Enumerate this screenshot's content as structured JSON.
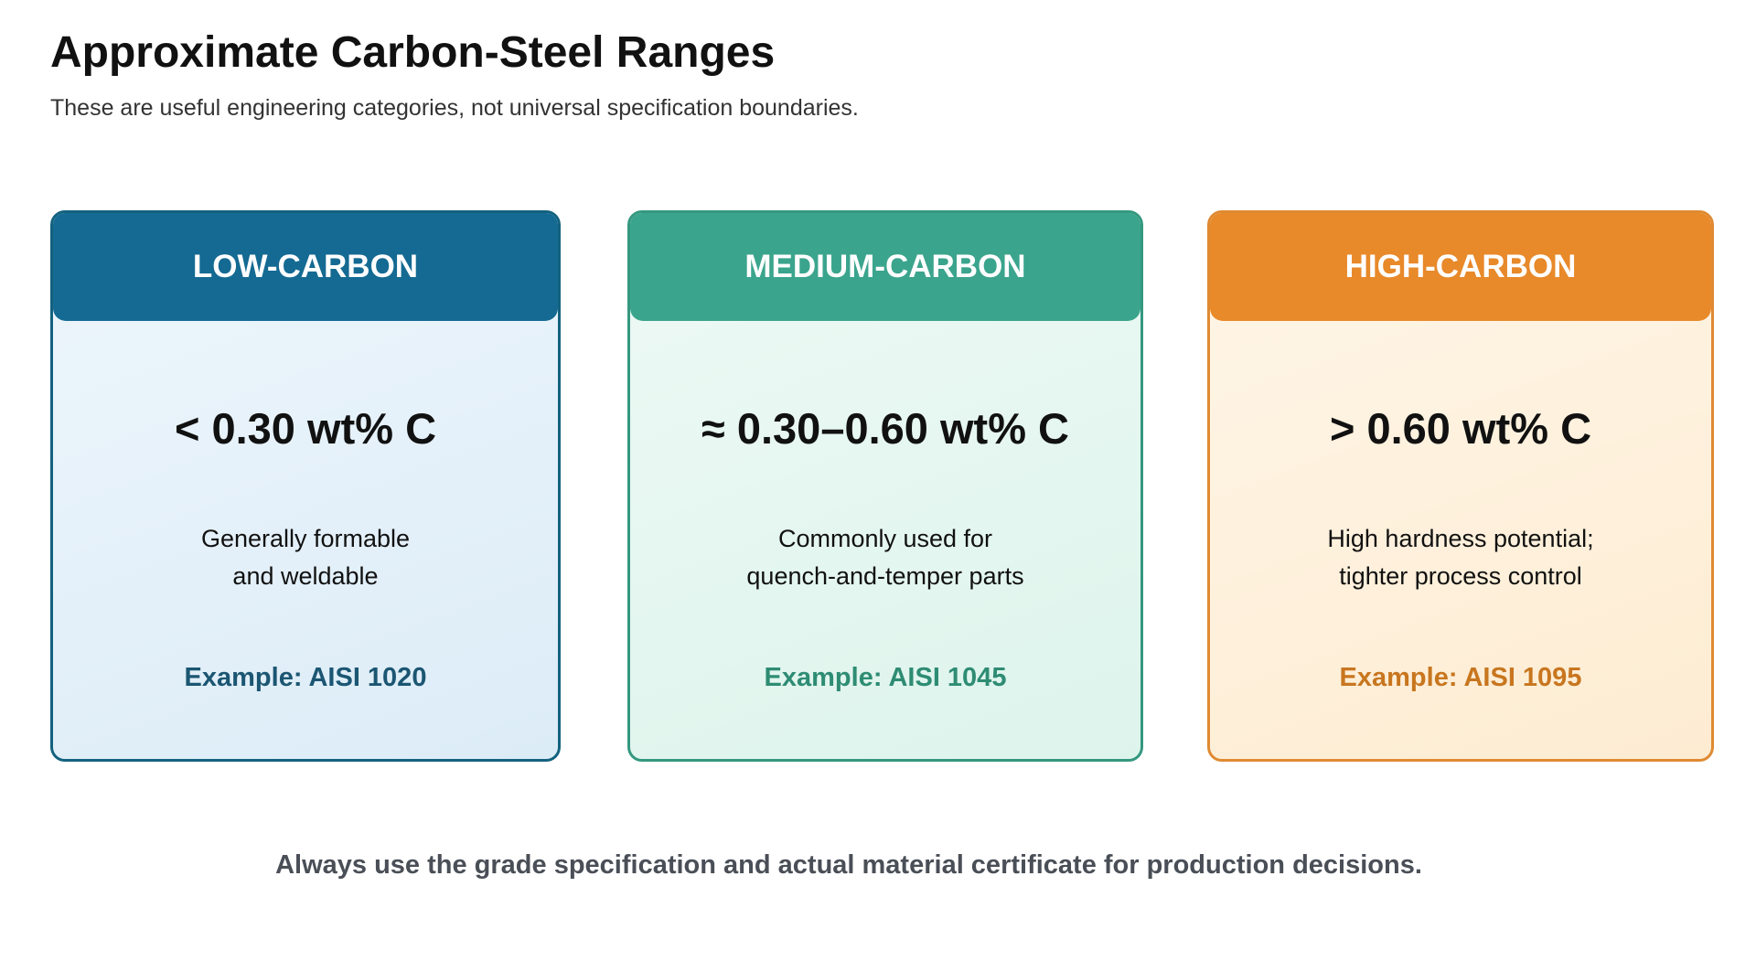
{
  "header": {
    "title": "Approximate Carbon-Steel Ranges",
    "subtitle": "These are useful engineering categories, not universal specification boundaries."
  },
  "cards": [
    {
      "label": "LOW-CARBON",
      "range": "< 0.30 wt% C",
      "description": [
        "Generally formable",
        "and weldable"
      ],
      "example": "Example: AISI 1020"
    },
    {
      "label": "MEDIUM-CARBON",
      "range": "≈ 0.30–0.60 wt% C",
      "description": [
        "Commonly used for",
        "quench-and-temper parts"
      ],
      "example": "Example: AISI 1045"
    },
    {
      "label": "HIGH-CARBON",
      "range": "> 0.60 wt% C",
      "description": [
        "High hardness potential;",
        "tighter process control"
      ],
      "example": "Example: AISI 1095"
    }
  ],
  "footer": {
    "note": "Always use the grade specification and actual material certificate for production decisions."
  }
}
